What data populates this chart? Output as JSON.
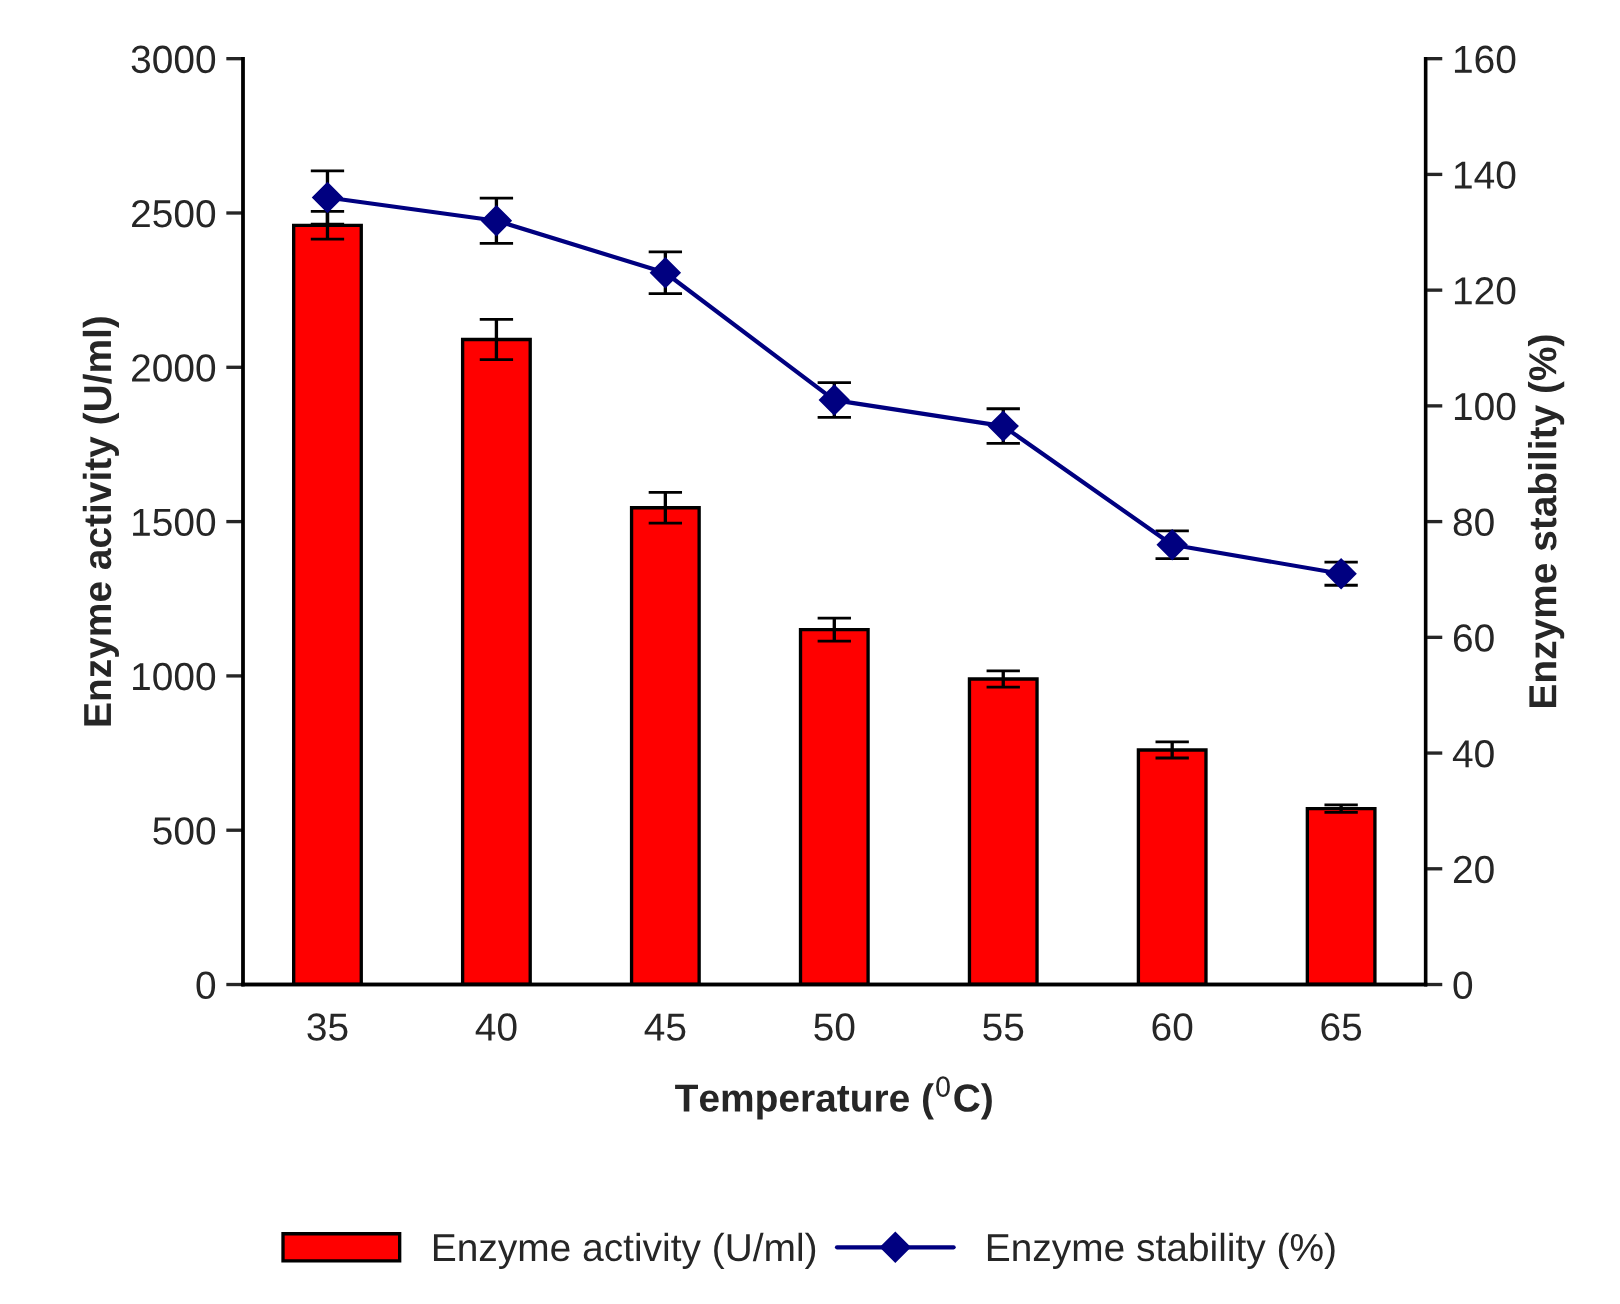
{
  "chart_data": {
    "type": "bar",
    "xlabel": "Temperature ($^{0}$C)",
    "ylabel": "Enzyme activity (U/ml)",
    "y2label": "Enzyme stability (%)",
    "categories": [
      "35",
      "40",
      "45",
      "50",
      "55",
      "60",
      "65"
    ],
    "series": [
      {
        "name": "Enzyme activity (U/ml)",
        "color": "#ff0000",
        "values": [
          2460,
          2090,
          1545,
          1150,
          990,
          760,
          570
        ],
        "errors": [
          45,
          65,
          50,
          37,
          26,
          26,
          12
        ]
      },
      {
        "name": "Enzyme stability (%)",
        "type": "line",
        "axis": "y2",
        "color": "#000080",
        "marker": "diamond",
        "values": [
          136,
          132,
          123,
          101,
          96.5,
          76,
          71
        ],
        "errors": [
          4.6,
          3.9,
          3.6,
          3,
          3,
          2.4,
          2
        ]
      }
    ],
    "ylim": [
      0,
      3000
    ],
    "yticks": [
      0,
      500,
      1000,
      1500,
      2000,
      2500,
      3000
    ],
    "y2lim": [
      0,
      160
    ],
    "y2ticks": [
      0,
      20,
      40,
      60,
      80,
      100,
      120,
      140,
      160
    ],
    "grid": false,
    "legend": "bottom"
  }
}
